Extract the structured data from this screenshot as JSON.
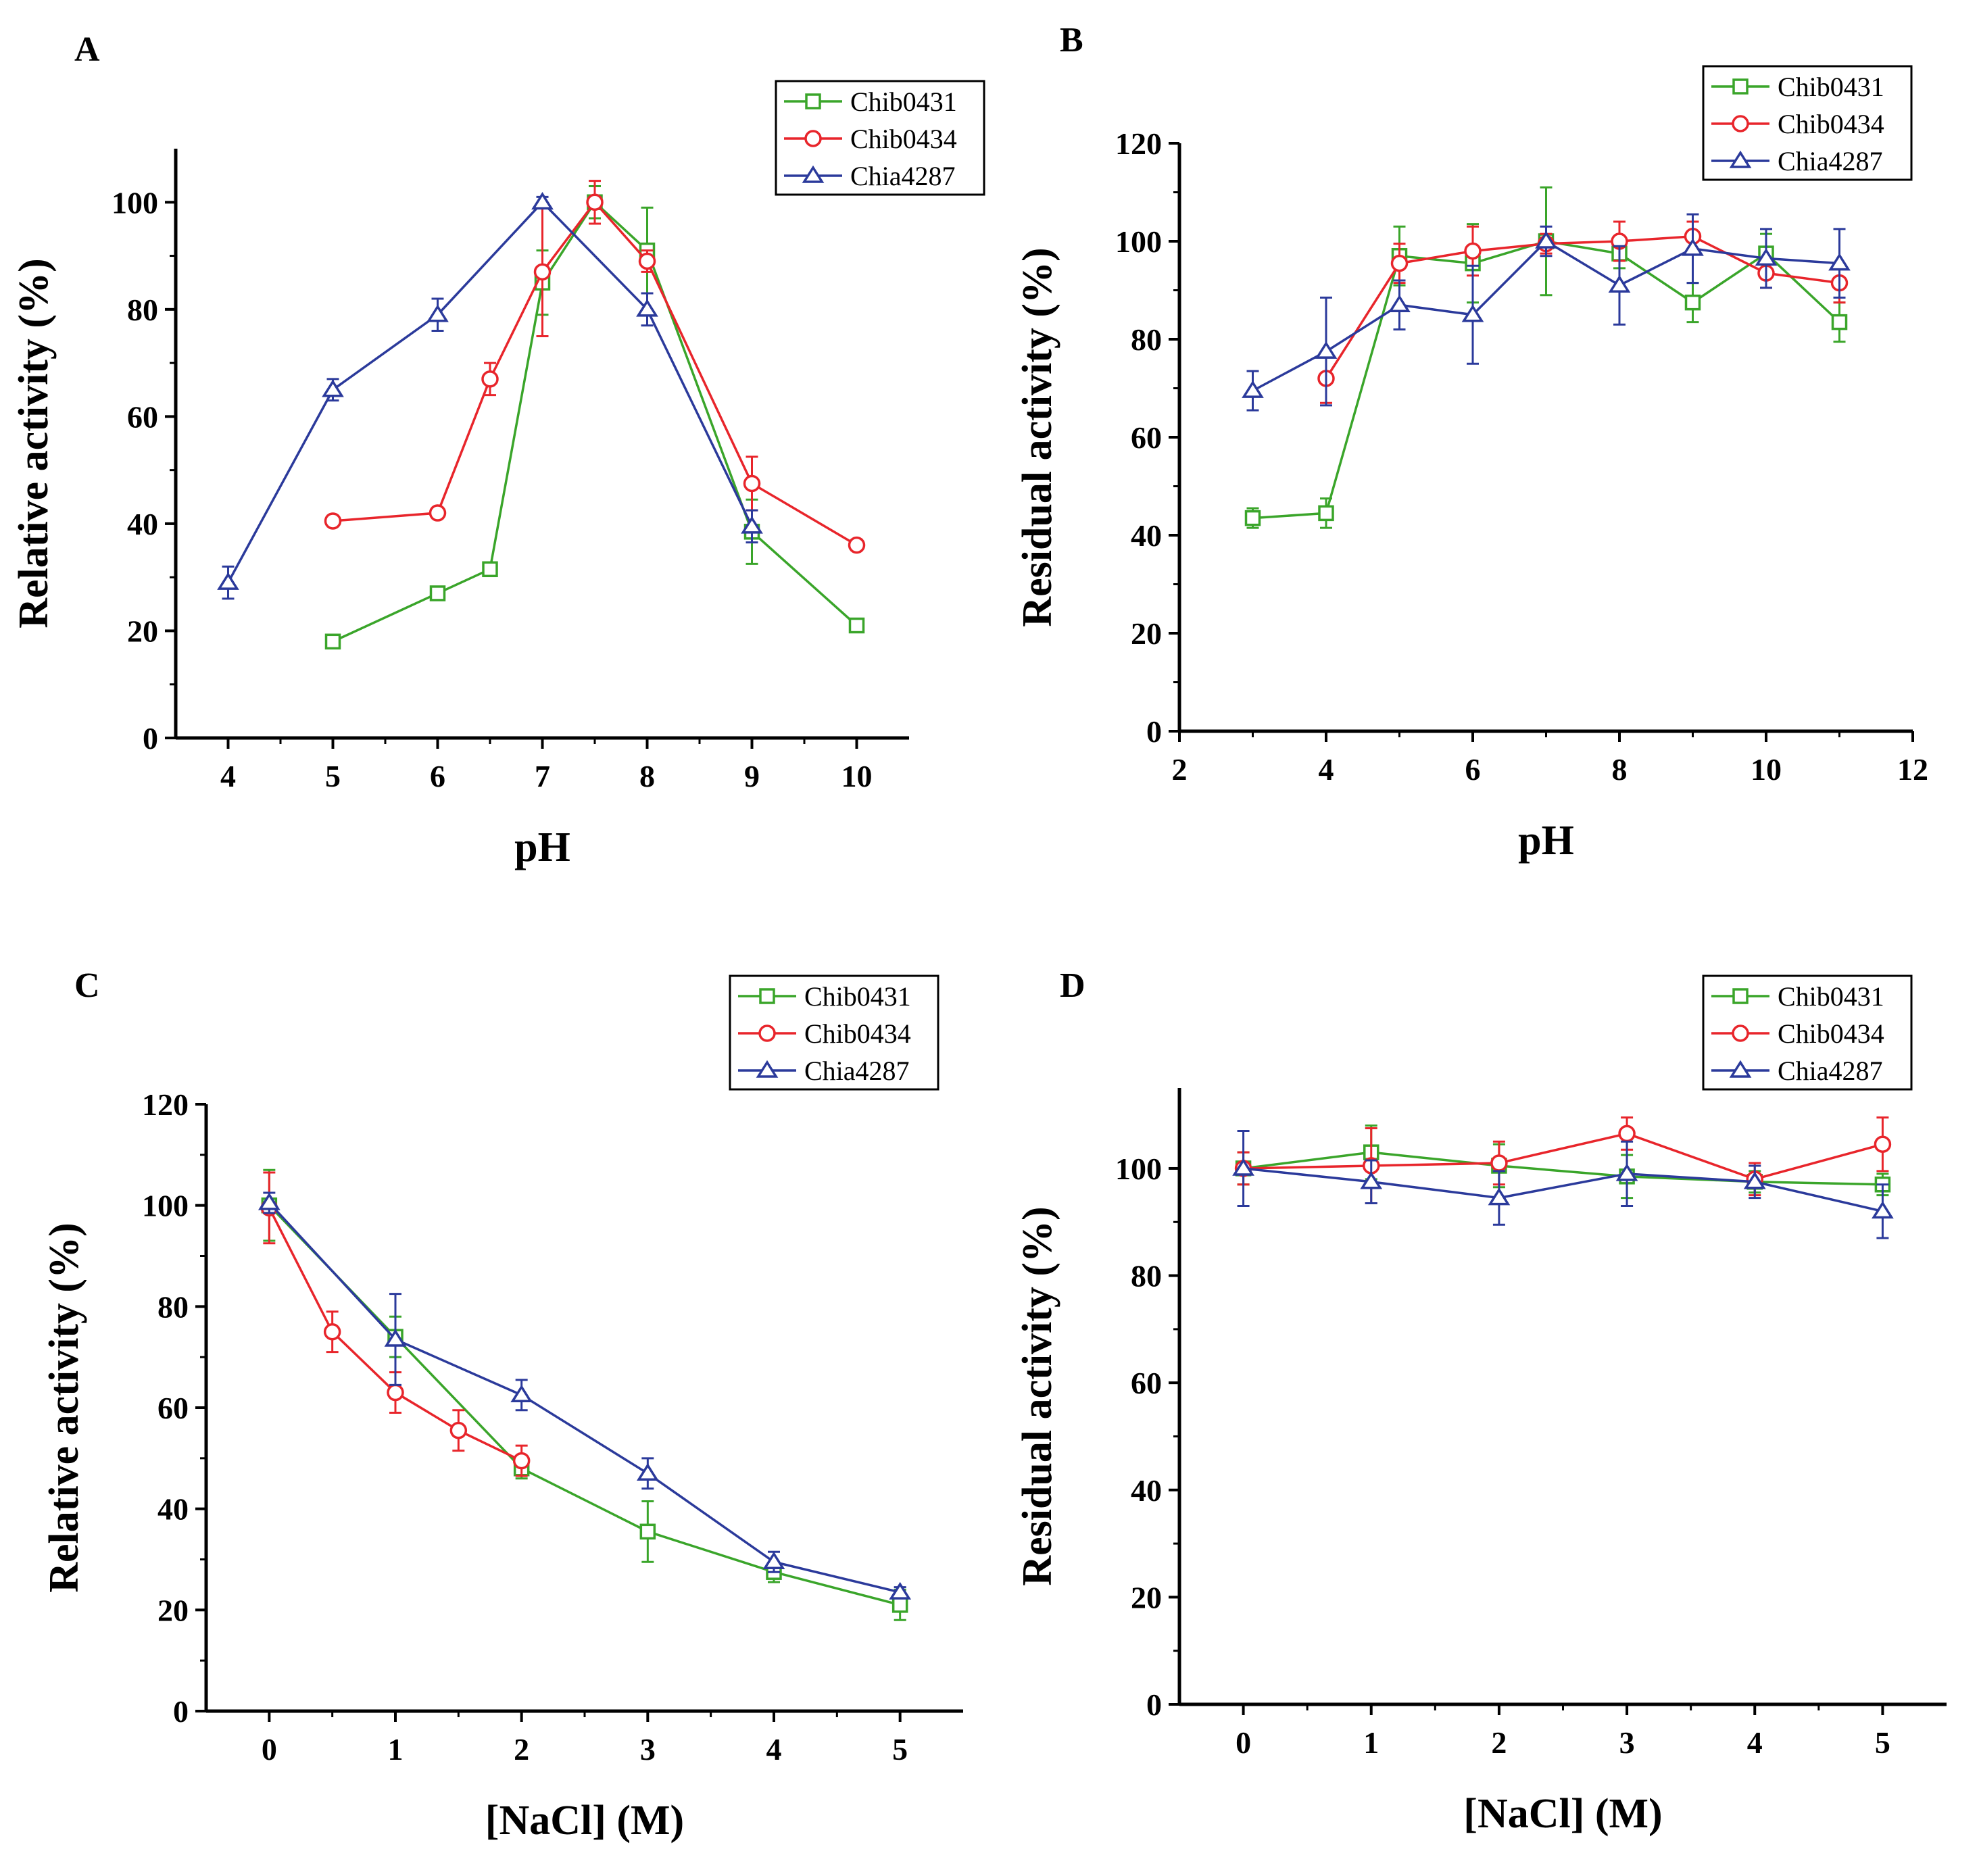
{
  "colors": {
    "Chib0431": "#3aa52a",
    "Chib0434": "#e8252b",
    "Chia4287": "#2b3a9b"
  },
  "chart_data": [
    {
      "panel": "A",
      "type": "line",
      "xlabel": "pH",
      "ylabel": "Relative activity (%)",
      "xlim": [
        3.5,
        10.5
      ],
      "ylim": [
        0,
        110
      ],
      "xticks": [
        4,
        5,
        6,
        7,
        8,
        9,
        10
      ],
      "yticks": [
        0,
        20,
        40,
        60,
        80,
        100
      ],
      "legend_position": "top-right",
      "series": [
        {
          "name": "Chib0431",
          "marker": "square",
          "x": [
            5,
            6,
            6.5,
            7,
            7.5,
            8,
            9,
            10
          ],
          "y": [
            18,
            27,
            31.5,
            85,
            100,
            91,
            38.5,
            21
          ],
          "err": [
            1,
            1,
            1,
            6,
            3,
            8,
            6,
            1
          ]
        },
        {
          "name": "Chib0434",
          "marker": "circle",
          "x": [
            5,
            6,
            6.5,
            7,
            7.5,
            8,
            9,
            10
          ],
          "y": [
            40.5,
            42,
            67,
            87,
            100,
            89,
            47.5,
            36
          ],
          "err": [
            1,
            1,
            3,
            12,
            4,
            2,
            5,
            1
          ]
        },
        {
          "name": "Chia4287",
          "marker": "triangle",
          "x": [
            4,
            5,
            6,
            7,
            8,
            9
          ],
          "y": [
            29,
            65,
            79,
            100,
            80,
            39.5
          ],
          "err": [
            3,
            2,
            3,
            1,
            3,
            3
          ]
        }
      ]
    },
    {
      "panel": "B",
      "type": "line",
      "xlabel": "pH",
      "ylabel": "Residual activity (%)",
      "xlim": [
        2,
        12
      ],
      "ylim": [
        0,
        120
      ],
      "xticks": [
        2,
        4,
        6,
        8,
        10,
        12
      ],
      "yticks": [
        0,
        20,
        40,
        60,
        80,
        100,
        120
      ],
      "legend_position": "top-right",
      "series": [
        {
          "name": "Chib0431",
          "marker": "square",
          "x": [
            3,
            4,
            5,
            6,
            7,
            8,
            9,
            10,
            11
          ],
          "y": [
            43.5,
            44.5,
            97,
            95.5,
            100,
            97.5,
            87.5,
            97.5,
            83.5
          ],
          "err": [
            2,
            3,
            6,
            8,
            11,
            3,
            4,
            4,
            4
          ]
        },
        {
          "name": "Chib0434",
          "marker": "circle",
          "x": [
            4,
            5,
            6,
            7,
            8,
            9,
            10,
            11
          ],
          "y": [
            72,
            95.5,
            98,
            99.5,
            100,
            101,
            93.5,
            91.5
          ],
          "err": [
            5,
            4,
            5,
            2,
            4,
            3,
            3,
            4
          ]
        },
        {
          "name": "Chia4287",
          "marker": "triangle",
          "x": [
            3,
            4,
            5,
            6,
            7,
            8,
            9,
            10,
            11
          ],
          "y": [
            69.5,
            77.5,
            87,
            85,
            100,
            91,
            98.5,
            96.5,
            95.5
          ],
          "err": [
            4,
            11,
            5,
            10,
            3,
            8,
            7,
            6,
            7
          ]
        }
      ]
    },
    {
      "panel": "C",
      "type": "line",
      "xlabel": "[NaCl] (M)",
      "ylabel": "Relative activity (%)",
      "xlim": [
        -0.5,
        5.5
      ],
      "ylim": [
        0,
        120
      ],
      "xticks": [
        0,
        1,
        2,
        3,
        4,
        5
      ],
      "yticks": [
        0,
        20,
        40,
        60,
        80,
        100,
        120
      ],
      "legend_position": "top-right",
      "series": [
        {
          "name": "Chib0431",
          "marker": "square",
          "x": [
            0,
            1,
            2,
            3,
            4,
            5
          ],
          "y": [
            100,
            74,
            48,
            35.5,
            27.5,
            21
          ],
          "err": [
            7,
            4,
            2,
            6,
            2,
            3
          ]
        },
        {
          "name": "Chib0434",
          "marker": "circle",
          "x": [
            0,
            0.5,
            1,
            1.5,
            2
          ],
          "y": [
            99.5,
            75,
            63,
            55.5,
            49.5
          ],
          "err": [
            7,
            4,
            4,
            4,
            3
          ]
        },
        {
          "name": "Chia4287",
          "marker": "triangle",
          "x": [
            0,
            1,
            2,
            3,
            4,
            5
          ],
          "y": [
            100.5,
            73.5,
            62.5,
            47,
            29.5,
            23.5
          ],
          "err": [
            2,
            9,
            3,
            3,
            2,
            1
          ]
        }
      ]
    },
    {
      "panel": "D",
      "type": "line",
      "xlabel": "[NaCl] (M)",
      "ylabel": "Residual activity (%)",
      "xlim": [
        -0.5,
        5.5
      ],
      "ylim": [
        0,
        115
      ],
      "xticks": [
        0,
        1,
        2,
        3,
        4,
        5
      ],
      "yticks": [
        0,
        20,
        40,
        60,
        80,
        100
      ],
      "legend_position": "top-right",
      "series": [
        {
          "name": "Chib0431",
          "marker": "square",
          "x": [
            0,
            1,
            2,
            3,
            4,
            5
          ],
          "y": [
            100,
            103,
            100.5,
            98.5,
            97.5,
            97
          ],
          "err": [
            3,
            5,
            4,
            4,
            2,
            2
          ]
        },
        {
          "name": "Chib0434",
          "marker": "circle",
          "x": [
            0,
            1,
            2,
            3,
            4,
            5
          ],
          "y": [
            100,
            100.5,
            101,
            106.5,
            98,
            104.5
          ],
          "err": [
            3,
            7,
            4,
            3,
            3,
            5
          ]
        },
        {
          "name": "Chia4287",
          "marker": "triangle",
          "x": [
            0,
            1,
            2,
            3,
            4,
            5
          ],
          "y": [
            100,
            97.5,
            94.5,
            99,
            97.5,
            92
          ],
          "err": [
            7,
            4,
            5,
            6,
            3,
            5
          ]
        }
      ]
    }
  ]
}
